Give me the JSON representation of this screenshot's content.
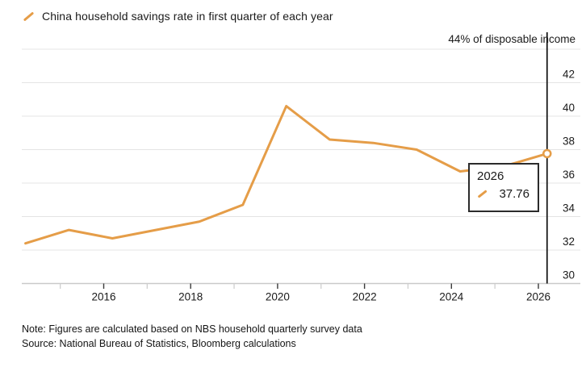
{
  "legend": {
    "label": "China household savings rate in first quarter of each year"
  },
  "axis_note": "44% of disposable income",
  "tooltip": {
    "year": "2026",
    "value": "37.76"
  },
  "footer": {
    "note": "Note: Figures are calculated based on NBS household quarterly survey data",
    "source": "Source: National Bureau of Statistics, Bloomberg calculations"
  },
  "colors": {
    "line": "#E59D48",
    "grid": "#E4E4E4",
    "axis": "#C9C9C9",
    "tick_major": "#3a3a3a",
    "tick_minor": "#CFCFCF",
    "marker_line": "#1a1a1a",
    "text": "#1a1a1a",
    "tooltip_border": "#2b2b2b"
  },
  "chart_data": {
    "type": "line",
    "title": "China household savings rate in first quarter of each year",
    "x": [
      2014,
      2015,
      2016,
      2017,
      2018,
      2019,
      2020,
      2021,
      2022,
      2023,
      2024,
      2025,
      2026
    ],
    "values": [
      32.4,
      33.2,
      32.7,
      33.2,
      33.7,
      34.7,
      40.6,
      38.6,
      38.4,
      38.0,
      36.7,
      37.0,
      37.76
    ],
    "xlabel": "",
    "ylabel": "% of disposable income",
    "ylim": [
      30,
      44
    ],
    "yticks": [
      30,
      32,
      34,
      36,
      38,
      40,
      42,
      44
    ],
    "xticks_labeled": [
      2016,
      2018,
      2020,
      2022,
      2024,
      2026
    ],
    "xticks_minor": [
      2015,
      2017,
      2019,
      2021,
      2023,
      2025
    ],
    "grid": "horizontal",
    "legend_position": "top-left",
    "highlight": {
      "x": 2026,
      "value": 37.76
    }
  }
}
